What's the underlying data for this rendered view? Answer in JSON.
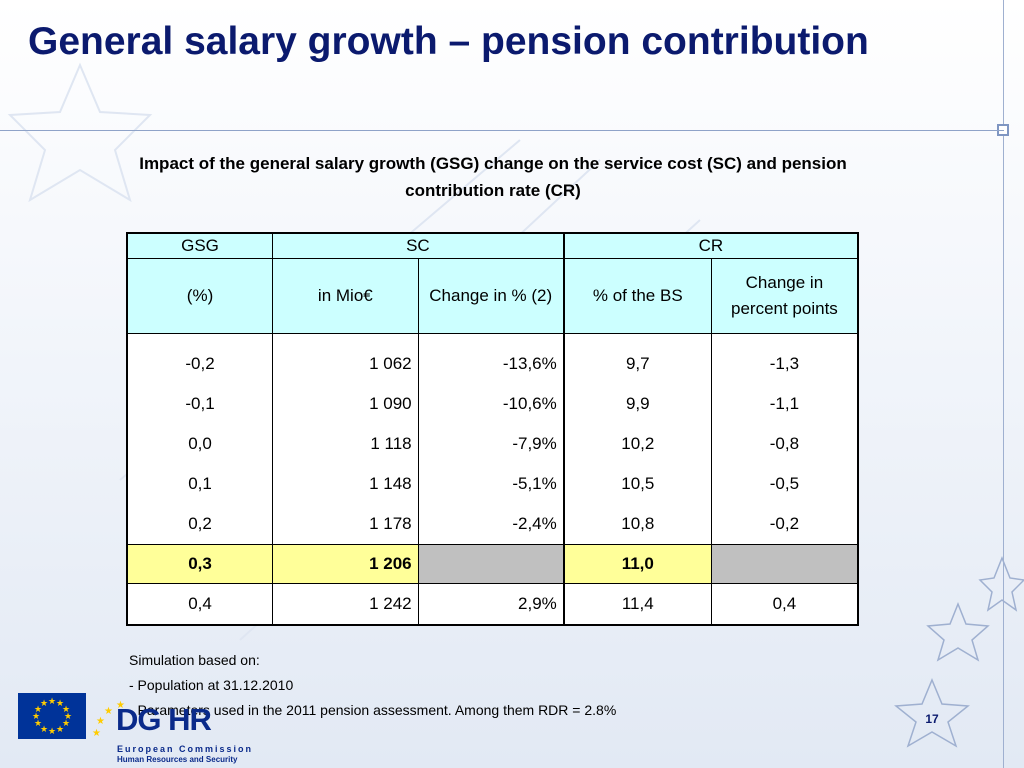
{
  "slide": {
    "title": "General salary growth – pension contribution",
    "subtitle": "Impact of the general salary growth (GSG) change on the service cost (SC) and pension contribution rate (CR)",
    "page_number": "17"
  },
  "table": {
    "group_headers": [
      "GSG",
      "SC",
      "CR"
    ],
    "sub_headers": [
      "(%)",
      "in Mio€",
      "Change in % (2)",
      "% of the BS",
      "Change in percent points"
    ],
    "rows": [
      [
        "-0,2",
        "1 062",
        "-13,6%",
        "9,7",
        "-1,3"
      ],
      [
        "-0,1",
        "1 090",
        "-10,6%",
        "9,9",
        "-1,1"
      ],
      [
        "0,0",
        "1 118",
        "-7,9%",
        "10,2",
        "-0,8"
      ],
      [
        "0,1",
        "1 148",
        "-5,1%",
        "10,5",
        "-0,5"
      ],
      [
        "0,2",
        "1 178",
        "-2,4%",
        "10,8",
        "-0,2"
      ],
      [
        "0,3",
        "1 206",
        "",
        "11,0",
        ""
      ],
      [
        "0,4",
        "1 242",
        "2,9%",
        "11,4",
        "0,4"
      ]
    ],
    "highlight_color": "#ffff99",
    "header_color": "#ccffff",
    "blank_cell_color": "#c0c0c0"
  },
  "notes": [
    "Simulation based on:",
    "- Population at 31.12.2010",
    "- Parameters used in the 2011 pension assessment. Among them RDR = 2.8%"
  ],
  "logo": {
    "name": "DG HR",
    "line1": "European Commission",
    "line2": "Human Resources and Security",
    "icon": "eu-flag-icon"
  },
  "colors": {
    "title": "#0b1a6e",
    "eu_blue": "#003399",
    "eu_gold": "#ffcc00"
  }
}
